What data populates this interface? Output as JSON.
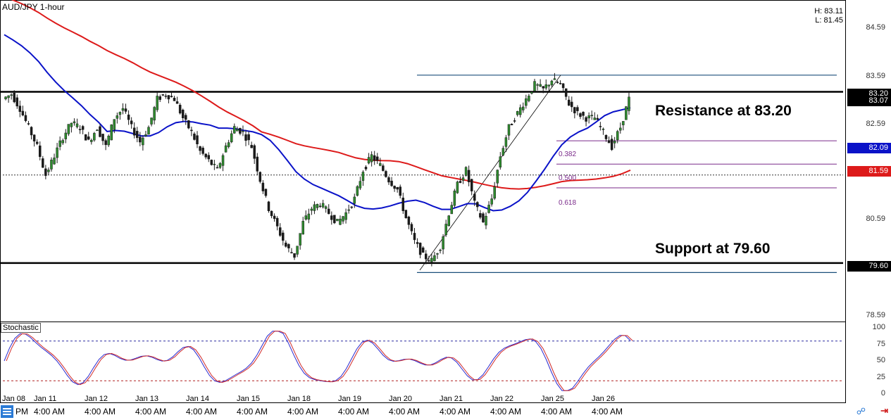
{
  "title": "AUD/JPY 1-hour",
  "high_low": {
    "high": "H: 83.11",
    "low": "L: 81.45"
  },
  "price_axis": [
    "84.59",
    "83.59",
    "82.59",
    "81.59",
    "80.59",
    "78.59"
  ],
  "price_tags": {
    "level_upper": "83.20",
    "current": "83.07",
    "blue_ma": "82.09",
    "red_ma": "81.59",
    "support": "79.60"
  },
  "colors": {
    "blue_ma": "#0a12c8",
    "red_ma": "#dd1a1a",
    "candle_up": "#2e8b2e",
    "candle_down": "#1a1a1a",
    "fib": "#7a2a8a",
    "channel": "#1a4e7a",
    "current_tag": "#000000"
  },
  "annotations": {
    "resistance": "Resistance at 83.20",
    "support": "Support at 79.60"
  },
  "fib_levels": [
    "0.382",
    "0.500",
    "0.618"
  ],
  "stochastic": {
    "label": "Stochastic",
    "levels": [
      "100",
      "75",
      "50",
      "25",
      "0"
    ]
  },
  "x_axis": {
    "dates": [
      "Jan 08",
      "Jan 11",
      "Jan 12",
      "Jan 13",
      "Jan 14",
      "Jan 15",
      "Jan 18",
      "Jan 19",
      "Jan 20",
      "Jan 21",
      "Jan 22",
      "Jan 25",
      "Jan 26"
    ],
    "time_first": "PM",
    "times": [
      "4:00 AM",
      "4:00 AM",
      "4:00 AM",
      "4:00 AM",
      "4:00 AM",
      "4:00 AM",
      "4:00 AM",
      "4:00 AM",
      "4:00 AM",
      "4:00 AM",
      "4:00 AM",
      "4:00 AM"
    ]
  },
  "chart_data": {
    "type": "candlestick",
    "title": "AUD/JPY 1-hour",
    "y_range": [
      78.4,
      85.1
    ],
    "horizontal_levels": {
      "resistance": 83.2,
      "support": 79.6
    },
    "series": [
      {
        "values": [
          83.05,
          83.15,
          82.85,
          82.45,
          82.05,
          81.45,
          81.85,
          82.25,
          82.55,
          82.45,
          82.15,
          82.45,
          82.05,
          82.65,
          82.85,
          82.45,
          82.15,
          82.45,
          83.05,
          83.15,
          83.05,
          82.65,
          82.35,
          81.95,
          81.75,
          81.55,
          82.05,
          82.45,
          82.35,
          82.05,
          81.35,
          80.75,
          80.35,
          79.95,
          79.75,
          80.45,
          80.75,
          80.85,
          80.65,
          80.45,
          80.65,
          80.95,
          81.55,
          81.85,
          81.65,
          81.35,
          81.15,
          80.55,
          80.05,
          79.75,
          79.65,
          79.95,
          80.65,
          81.25,
          81.55,
          80.85,
          80.45,
          80.95,
          81.85,
          82.45,
          82.75,
          83.05,
          83.35,
          83.25,
          83.45,
          83.35,
          82.95,
          82.75,
          82.65,
          82.65,
          82.35,
          82.05,
          82.45,
          83.05
        ]
      }
    ],
    "stochastic": {
      "overbought": 80,
      "oversold": 20,
      "range": [
        0,
        100
      ]
    }
  }
}
